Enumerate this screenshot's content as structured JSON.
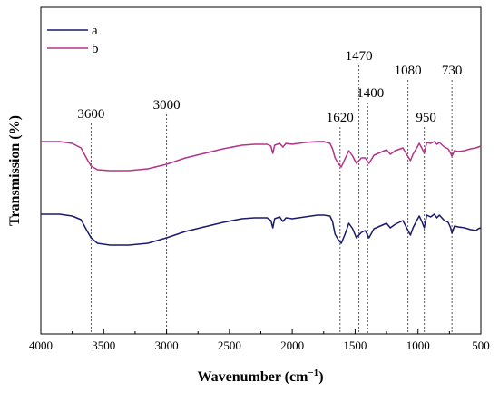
{
  "chart_data": {
    "type": "line",
    "xlabel": "Wavenumber (cm",
    "xlabel_sup": "−1",
    "xlabel_suffix": ")",
    "ylabel": "Transmission (%)",
    "xlim": [
      4000,
      500
    ],
    "x_reversed": true,
    "xticks": [
      4000,
      3500,
      3000,
      2500,
      2000,
      1500,
      1000,
      500
    ],
    "yticks_shown": false,
    "grid": false,
    "legend_position": "top-left",
    "colors": {
      "a": "#1a1a6e",
      "b": "#b5338a",
      "guides": "#555555"
    },
    "annotations": [
      {
        "label": "3600",
        "x": 3600
      },
      {
        "label": "3000",
        "x": 3000
      },
      {
        "label": "1620",
        "x": 1620
      },
      {
        "label": "1470",
        "x": 1470
      },
      {
        "label": "1400",
        "x": 1400
      },
      {
        "label": "1080",
        "x": 1080
      },
      {
        "label": "950",
        "x": 950
      },
      {
        "label": "730",
        "x": 730
      }
    ],
    "series": [
      {
        "name": "a",
        "points": [
          [
            4000,
            236
          ],
          [
            3850,
            236
          ],
          [
            3750,
            238
          ],
          [
            3680,
            242
          ],
          [
            3630,
            255
          ],
          [
            3600,
            262
          ],
          [
            3550,
            268
          ],
          [
            3450,
            270
          ],
          [
            3300,
            270
          ],
          [
            3150,
            268
          ],
          [
            3000,
            262
          ],
          [
            2850,
            255
          ],
          [
            2700,
            250
          ],
          [
            2550,
            245
          ],
          [
            2400,
            241
          ],
          [
            2300,
            240
          ],
          [
            2200,
            240
          ],
          [
            2170,
            243
          ],
          [
            2155,
            251
          ],
          [
            2140,
            241
          ],
          [
            2100,
            239
          ],
          [
            2075,
            244
          ],
          [
            2050,
            240
          ],
          [
            2000,
            241
          ],
          [
            1900,
            239
          ],
          [
            1800,
            237
          ],
          [
            1750,
            237
          ],
          [
            1700,
            238
          ],
          [
            1680,
            244
          ],
          [
            1660,
            258
          ],
          [
            1630,
            265
          ],
          [
            1610,
            268
          ],
          [
            1580,
            258
          ],
          [
            1550,
            246
          ],
          [
            1520,
            252
          ],
          [
            1490,
            262
          ],
          [
            1450,
            256
          ],
          [
            1420,
            254
          ],
          [
            1390,
            262
          ],
          [
            1350,
            252
          ],
          [
            1300,
            249
          ],
          [
            1250,
            246
          ],
          [
            1220,
            251
          ],
          [
            1180,
            247
          ],
          [
            1120,
            243
          ],
          [
            1090,
            251
          ],
          [
            1060,
            259
          ],
          [
            1040,
            251
          ],
          [
            1010,
            243
          ],
          [
            990,
            238
          ],
          [
            970,
            244
          ],
          [
            950,
            251
          ],
          [
            930,
            237
          ],
          [
            900,
            239
          ],
          [
            870,
            236
          ],
          [
            850,
            240
          ],
          [
            830,
            237
          ],
          [
            790,
            243
          ],
          [
            760,
            245
          ],
          [
            740,
            251
          ],
          [
            730,
            257
          ],
          [
            710,
            249
          ],
          [
            680,
            250
          ],
          [
            630,
            251
          ],
          [
            580,
            253
          ],
          [
            540,
            254
          ],
          [
            520,
            252
          ],
          [
            500,
            251
          ]
        ]
      },
      {
        "name": "b",
        "points": [
          [
            4000,
            156
          ],
          [
            3850,
            156
          ],
          [
            3750,
            158
          ],
          [
            3680,
            163
          ],
          [
            3630,
            176
          ],
          [
            3600,
            183
          ],
          [
            3550,
            187
          ],
          [
            3450,
            188
          ],
          [
            3300,
            188
          ],
          [
            3150,
            186
          ],
          [
            3000,
            181
          ],
          [
            2850,
            174
          ],
          [
            2700,
            169
          ],
          [
            2550,
            164
          ],
          [
            2400,
            160
          ],
          [
            2300,
            159
          ],
          [
            2200,
            159
          ],
          [
            2170,
            161
          ],
          [
            2155,
            169
          ],
          [
            2140,
            160
          ],
          [
            2100,
            158
          ],
          [
            2075,
            162
          ],
          [
            2050,
            158
          ],
          [
            2000,
            159
          ],
          [
            1900,
            157
          ],
          [
            1800,
            156
          ],
          [
            1750,
            156
          ],
          [
            1700,
            158
          ],
          [
            1680,
            164
          ],
          [
            1660,
            174
          ],
          [
            1630,
            181
          ],
          [
            1610,
            184
          ],
          [
            1580,
            175
          ],
          [
            1550,
            166
          ],
          [
            1520,
            172
          ],
          [
            1490,
            180
          ],
          [
            1450,
            174
          ],
          [
            1420,
            174
          ],
          [
            1390,
            180
          ],
          [
            1350,
            171
          ],
          [
            1300,
            168
          ],
          [
            1250,
            165
          ],
          [
            1220,
            170
          ],
          [
            1180,
            166
          ],
          [
            1120,
            163
          ],
          [
            1090,
            170
          ],
          [
            1060,
            177
          ],
          [
            1040,
            170
          ],
          [
            1010,
            163
          ],
          [
            990,
            158
          ],
          [
            970,
            163
          ],
          [
            950,
            169
          ],
          [
            930,
            157
          ],
          [
            900,
            158
          ],
          [
            870,
            156
          ],
          [
            850,
            159
          ],
          [
            830,
            157
          ],
          [
            790,
            162
          ],
          [
            760,
            164
          ],
          [
            740,
            169
          ],
          [
            730,
            172
          ],
          [
            710,
            166
          ],
          [
            680,
            167
          ],
          [
            630,
            166
          ],
          [
            580,
            164
          ],
          [
            540,
            163
          ],
          [
            520,
            162
          ],
          [
            500,
            161
          ]
        ]
      }
    ]
  }
}
